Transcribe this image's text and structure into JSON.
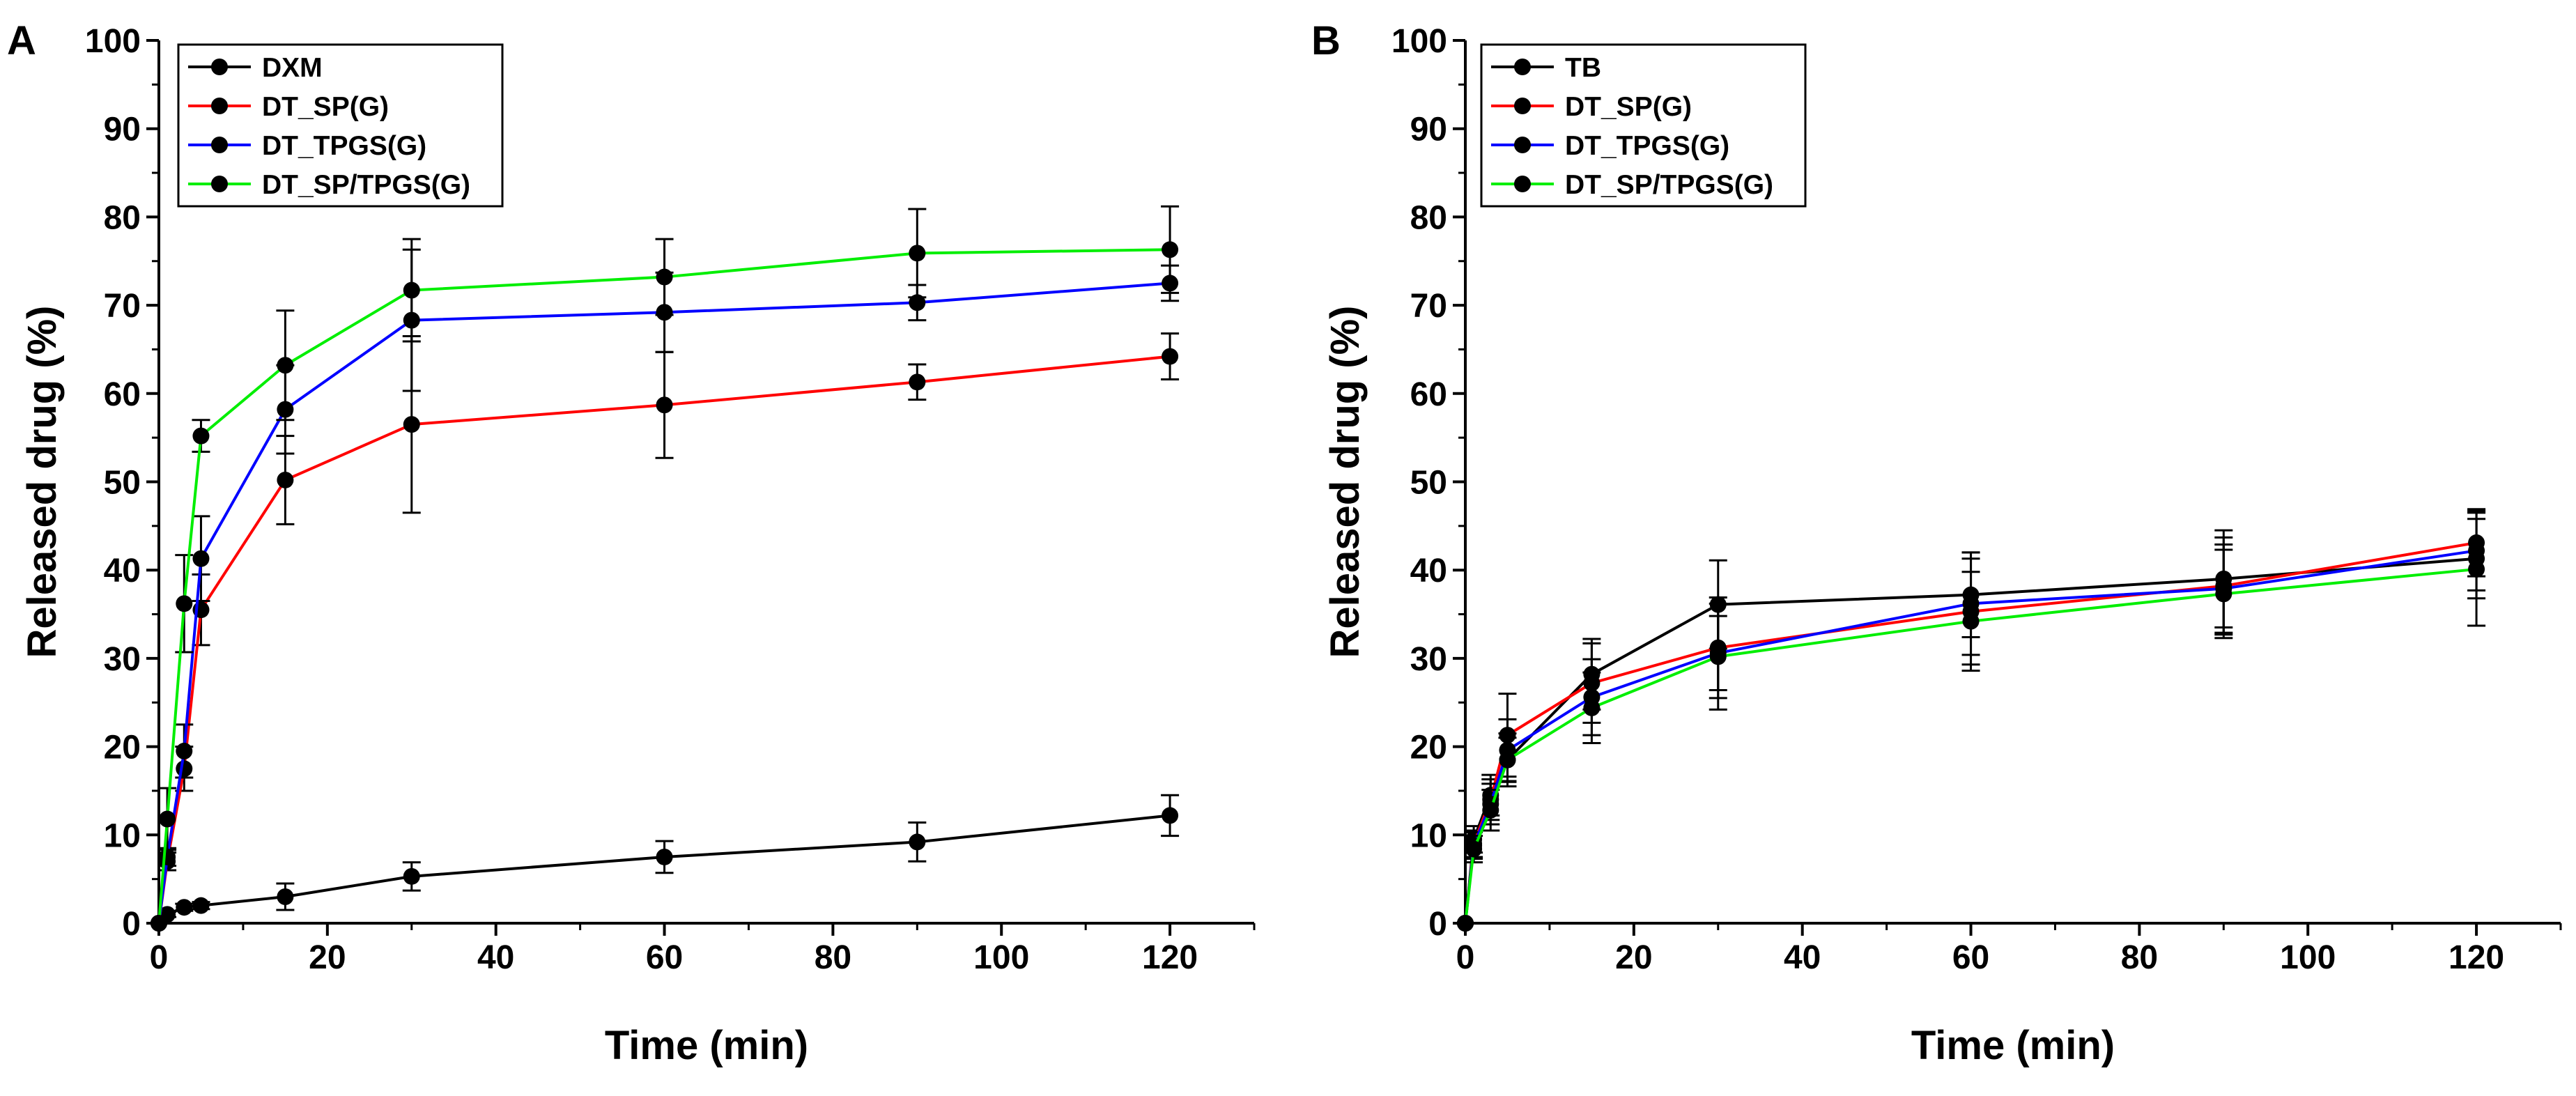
{
  "chart_data": [
    {
      "type": "line",
      "panel_label": "A",
      "xlabel": "Time (min)",
      "ylabel": "Released drug (%)",
      "xlim": [
        0,
        130
      ],
      "ylim": [
        0,
        100
      ],
      "xticks": [
        0,
        20,
        40,
        60,
        80,
        100,
        120
      ],
      "yticks": [
        0,
        10,
        20,
        30,
        40,
        50,
        60,
        70,
        80,
        90,
        100
      ],
      "legend_position": "top-left",
      "x": [
        0,
        1,
        3,
        5,
        15,
        30,
        60,
        90,
        120
      ],
      "series": [
        {
          "name": "DXM",
          "color": "#000000",
          "values": [
            0,
            1,
            1.8,
            2,
            3,
            5.3,
            7.5,
            9.2,
            12.2
          ],
          "errors": [
            0,
            0.3,
            0.4,
            0.4,
            1.5,
            1.6,
            1.8,
            2.2,
            2.3
          ]
        },
        {
          "name": "DT_SP(G)",
          "color": "#ff0000",
          "values": [
            0,
            7,
            17.5,
            35.5,
            50.2,
            56.5,
            58.7,
            61.3,
            64.2
          ],
          "errors": [
            0,
            1,
            2.5,
            4,
            5,
            10,
            6,
            2,
            2.6
          ]
        },
        {
          "name": "DT_TPGS(G)",
          "color": "#0000ff",
          "values": [
            0,
            7.5,
            19.5,
            41.3,
            58.2,
            68.3,
            69.2,
            70.3,
            72.5
          ],
          "errors": [
            0,
            1,
            3,
            4.8,
            5,
            8,
            4.5,
            2,
            2
          ]
        },
        {
          "name": "DT_SP/TPGS(G)",
          "color": "#00ee00",
          "values": [
            0,
            11.8,
            36.2,
            55.2,
            63.2,
            71.7,
            73.2,
            75.9,
            76.3
          ],
          "errors": [
            0,
            3.5,
            5.5,
            1.8,
            6.2,
            5.8,
            4.3,
            5,
            4.9
          ]
        }
      ]
    },
    {
      "type": "line",
      "panel_label": "B",
      "xlabel": "Time (min)",
      "ylabel": "Released drug (%)",
      "xlim": [
        0,
        130
      ],
      "ylim": [
        0,
        100
      ],
      "xticks": [
        0,
        20,
        40,
        60,
        80,
        100,
        120
      ],
      "yticks": [
        0,
        10,
        20,
        30,
        40,
        50,
        60,
        70,
        80,
        90,
        100
      ],
      "legend_position": "top-left",
      "x": [
        0,
        1,
        3,
        5,
        15,
        30,
        60,
        90,
        120
      ],
      "series": [
        {
          "name": "TB",
          "color": "#000000",
          "values": [
            0,
            9.5,
            14.5,
            18.5,
            28.2,
            36.1,
            37.2,
            39,
            41.3
          ],
          "errors": [
            0,
            1.5,
            2.3,
            2.5,
            4,
            5,
            4.8,
            5.5,
            4.5
          ]
        },
        {
          "name": "DT_SP(G)",
          "color": "#ff0000",
          "values": [
            0,
            9,
            14,
            21.3,
            27.2,
            31.2,
            35.3,
            38.2,
            43.1
          ],
          "errors": [
            0,
            1.5,
            2.3,
            4.7,
            4.5,
            5.7,
            6,
            5.5,
            3.8
          ]
        },
        {
          "name": "DT_TPGS(G)",
          "color": "#0000ff",
          "values": [
            0,
            8.8,
            13.5,
            19.6,
            25.6,
            30.6,
            36.2,
            37.9,
            42.2
          ],
          "errors": [
            0,
            1.5,
            2.3,
            3.5,
            4.3,
            4.2,
            5.8,
            5,
            4.5
          ]
        },
        {
          "name": "DT_SP/TPGS(G)",
          "color": "#00ee00",
          "values": [
            0,
            8.4,
            12.8,
            18.5,
            24.4,
            30.2,
            34.2,
            37.3,
            40.1
          ],
          "errors": [
            0,
            1.5,
            2.3,
            3,
            4,
            6,
            5.6,
            5,
            6.4
          ]
        }
      ]
    }
  ]
}
